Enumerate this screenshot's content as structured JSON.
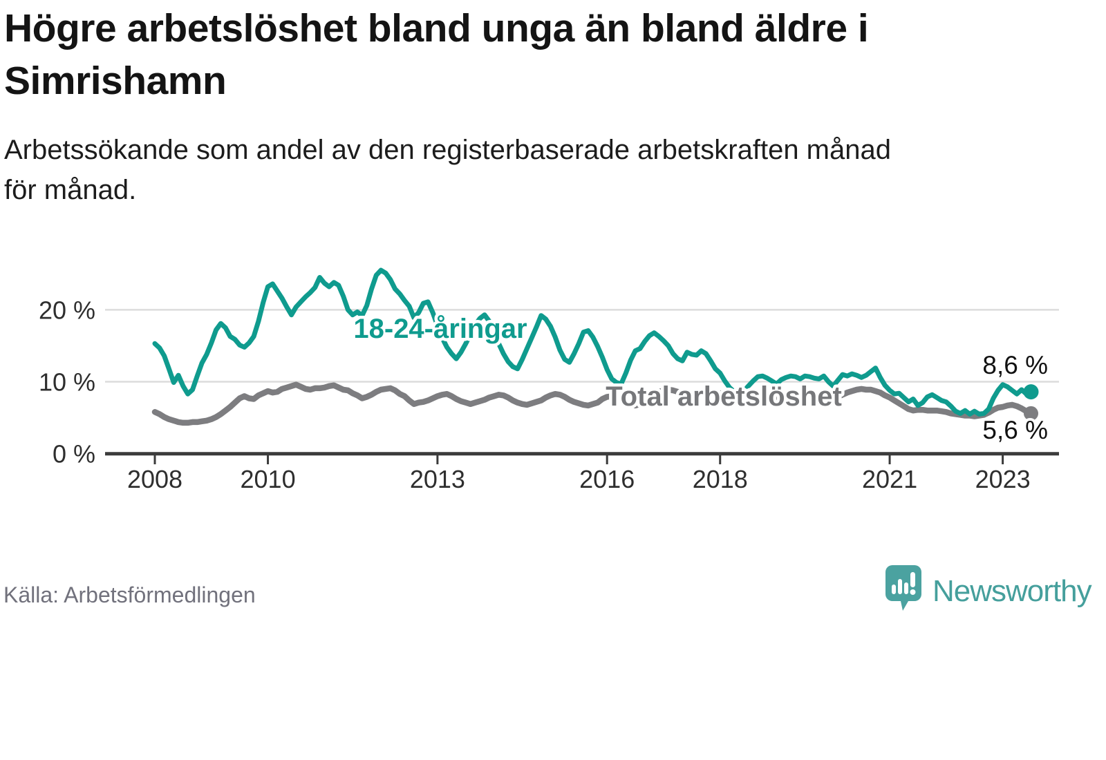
{
  "header": {
    "title_lines": [
      "Högre arbetslöshet bland unga än bland äldre i",
      "Simrishamn"
    ],
    "subtitle_lines": [
      "Arbetssökande som andel av den registerbaserade arbetskraften månad",
      "för månad."
    ]
  },
  "footer": {
    "source": "Källa: Arbetsförmedlingen",
    "brand_name": "Newsworthy"
  },
  "colors": {
    "youth_line": "#0f9b8e",
    "total_line": "#7d7d80",
    "total_label": "#76777a",
    "grid": "#dcdcdc",
    "axis": "#3b3b3b",
    "logo": "#4ba2a0",
    "brand_text": "#459f9c"
  },
  "chart_data": {
    "type": "line",
    "title": "Högre arbetslöshet bland unga än bland äldre i Simrishamn",
    "subtitle": "Arbetssökande som andel av den registerbaserade arbetskraften månad för månad.",
    "unit": "%",
    "grid": "horizontal",
    "legend_position": "inline-labels",
    "x_start_year": 2008.0,
    "x_step_months": 1,
    "x_end_year": 2023.5,
    "x_tick_years": [
      2008,
      2010,
      2013,
      2016,
      2018,
      2021,
      2023
    ],
    "x_tick_labels": [
      "2008",
      "2010",
      "2013",
      "2016",
      "2018",
      "2021",
      "2023"
    ],
    "y_ticks": [
      {
        "value": 0,
        "label": "0 %"
      },
      {
        "value": 10,
        "label": "10 %"
      },
      {
        "value": 20,
        "label": "20 %"
      }
    ],
    "ylim": [
      0,
      27
    ],
    "series": [
      {
        "name": "18-24-åringar",
        "color": "#0f9b8e",
        "end_label": "8,6 %",
        "end_value": 8.6,
        "values": [
          15.3,
          14.7,
          13.6,
          11.8,
          9.9,
          10.9,
          9.4,
          8.3,
          8.9,
          10.8,
          12.6,
          13.8,
          15.4,
          17.2,
          18.1,
          17.5,
          16.3,
          15.9,
          15.1,
          14.8,
          15.4,
          16.3,
          18.4,
          21.0,
          23.2,
          23.6,
          22.6,
          21.6,
          20.4,
          19.3,
          20.4,
          21.1,
          21.8,
          22.4,
          23.1,
          24.5,
          23.7,
          23.2,
          23.8,
          23.4,
          21.9,
          20.0,
          19.3,
          19.7,
          19.2,
          20.6,
          22.9,
          24.8,
          25.5,
          25.1,
          24.2,
          22.9,
          22.2,
          21.3,
          20.5,
          18.9,
          19.6,
          20.9,
          21.1,
          19.6,
          17.8,
          16.1,
          14.8,
          13.9,
          13.2,
          14.1,
          15.3,
          16.6,
          17.9,
          18.8,
          19.3,
          18.4,
          16.9,
          15.3,
          13.9,
          12.8,
          12.1,
          11.8,
          13.1,
          14.6,
          16.1,
          17.6,
          19.2,
          18.7,
          17.7,
          16.2,
          14.4,
          13.1,
          12.7,
          13.9,
          15.3,
          16.9,
          17.1,
          16.2,
          14.9,
          13.4,
          11.7,
          10.4,
          9.9,
          9.7,
          11.2,
          13.0,
          14.3,
          14.6,
          15.6,
          16.4,
          16.8,
          16.3,
          15.7,
          15.0,
          13.9,
          13.2,
          12.9,
          14.1,
          13.8,
          13.7,
          14.3,
          13.9,
          12.9,
          11.8,
          11.2,
          10.1,
          9.2,
          8.6,
          8.3,
          8.7,
          9.4,
          10.1,
          10.7,
          10.8,
          10.5,
          10.1,
          9.7,
          10.3,
          10.6,
          10.8,
          10.7,
          10.4,
          10.8,
          10.7,
          10.5,
          10.4,
          10.8,
          10.0,
          9.4,
          10.2,
          11.0,
          10.8,
          11.1,
          10.9,
          10.6,
          10.9,
          11.4,
          11.9,
          10.6,
          9.5,
          8.8,
          8.3,
          8.4,
          7.8,
          7.2,
          7.6,
          6.7,
          7.1,
          7.9,
          8.2,
          7.8,
          7.4,
          7.2,
          6.6,
          5.9,
          5.6,
          6.0,
          5.5,
          5.9,
          5.5,
          5.6,
          6.2,
          7.7,
          8.8,
          9.6,
          9.3,
          8.8,
          8.3,
          8.9,
          8.3,
          8.6
        ]
      },
      {
        "name": "Total arbetslöshet",
        "color": "#7d7d80",
        "end_label": "5,6 %",
        "end_value": 5.6,
        "values": [
          5.8,
          5.5,
          5.1,
          4.8,
          4.6,
          4.4,
          4.3,
          4.3,
          4.4,
          4.4,
          4.5,
          4.6,
          4.8,
          5.1,
          5.5,
          6.0,
          6.5,
          7.1,
          7.7,
          8.0,
          7.7,
          7.6,
          8.1,
          8.4,
          8.7,
          8.5,
          8.6,
          9.0,
          9.2,
          9.4,
          9.6,
          9.3,
          9.0,
          8.9,
          9.1,
          9.1,
          9.2,
          9.4,
          9.5,
          9.2,
          8.9,
          8.8,
          8.4,
          8.1,
          7.7,
          7.9,
          8.2,
          8.6,
          8.9,
          9.0,
          9.1,
          8.8,
          8.3,
          8.0,
          7.4,
          6.9,
          7.1,
          7.2,
          7.4,
          7.7,
          8.0,
          8.2,
          8.3,
          8.0,
          7.6,
          7.3,
          7.1,
          6.9,
          7.1,
          7.3,
          7.5,
          7.8,
          8.0,
          8.2,
          8.1,
          7.8,
          7.4,
          7.1,
          6.9,
          6.8,
          7.0,
          7.2,
          7.4,
          7.8,
          8.1,
          8.3,
          8.2,
          7.9,
          7.5,
          7.2,
          7.0,
          6.8,
          6.7,
          6.9,
          7.1,
          7.6,
          7.9,
          8.0,
          7.8,
          7.5,
          7.2,
          6.9,
          6.7,
          6.9,
          7.2,
          7.7,
          8.2,
          8.6,
          8.8,
          8.9,
          8.8,
          8.6,
          8.4,
          8.2,
          8.1,
          8.2,
          8.4,
          8.3,
          8.2,
          8.3,
          8.4,
          8.3,
          8.1,
          7.9,
          7.7,
          7.5,
          7.4,
          7.5,
          7.6,
          7.7,
          7.8,
          7.8,
          7.7,
          7.6,
          7.5,
          7.4,
          7.3,
          7.2,
          7.2,
          7.3,
          7.4,
          7.4,
          7.5,
          7.6,
          7.7,
          7.9,
          8.2,
          8.5,
          8.7,
          8.9,
          9.0,
          8.9,
          8.9,
          8.7,
          8.5,
          8.1,
          7.8,
          7.4,
          7.0,
          6.6,
          6.2,
          6.0,
          6.1,
          6.1,
          6.0,
          6.0,
          6.0,
          5.9,
          5.8,
          5.6,
          5.5,
          5.4,
          5.3,
          5.3,
          5.2,
          5.3,
          5.4,
          5.7,
          6.1,
          6.4,
          6.5,
          6.7,
          6.8,
          6.6,
          6.3,
          5.9,
          5.6
        ]
      }
    ]
  }
}
